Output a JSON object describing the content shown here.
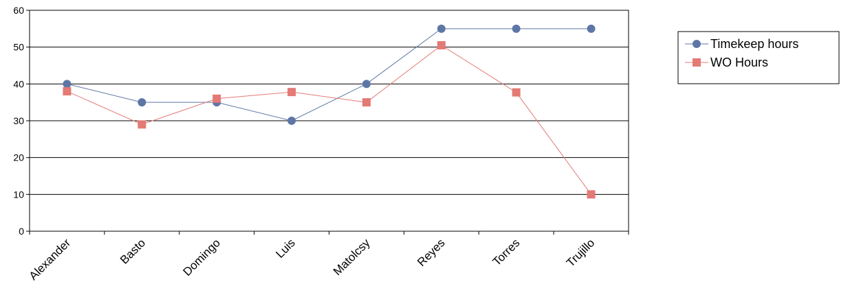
{
  "chart_data": {
    "type": "line",
    "title": "",
    "xlabel": "",
    "ylabel": "",
    "categories": [
      "Alexander",
      "Basto",
      "Domingo",
      "Luis",
      "Matolcsy",
      "Reyes",
      "Torres",
      "Trujillo"
    ],
    "ylim": [
      0,
      60
    ],
    "yticks": [
      0,
      10,
      20,
      30,
      40,
      50,
      60
    ],
    "grid": true,
    "legend_position": "right",
    "series": [
      {
        "name": "Timekeep hours",
        "values": [
          40,
          35,
          35,
          30,
          40,
          55,
          55,
          55
        ],
        "color": "#5e76a6",
        "marker": "circle"
      },
      {
        "name": "WO Hours",
        "values": [
          38,
          29,
          36,
          37.8,
          35,
          50.5,
          37.7,
          10
        ],
        "color": "#e37a75",
        "marker": "square"
      }
    ]
  }
}
